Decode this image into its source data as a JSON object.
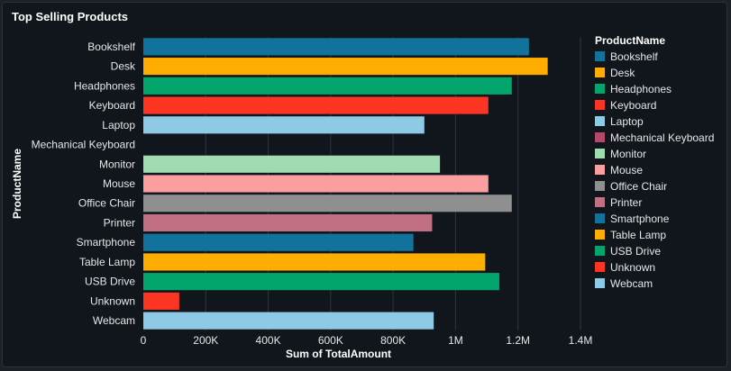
{
  "card": {
    "title": "Top Selling Products"
  },
  "chart_data": {
    "type": "bar",
    "orientation": "horizontal",
    "title": "Top Selling Products",
    "xlabel": "Sum of TotalAmount",
    "ylabel": "ProductName",
    "xlim": [
      0,
      1400000
    ],
    "x_ticks": [
      0,
      200000,
      400000,
      600000,
      800000,
      1000000,
      1200000,
      1400000
    ],
    "x_tick_labels": [
      "0",
      "200K",
      "400K",
      "600K",
      "800K",
      "1M",
      "1.2M",
      "1.4M"
    ],
    "grid": true,
    "legend": {
      "title": "ProductName",
      "position": "right"
    },
    "categories": [
      "Bookshelf",
      "Desk",
      "Headphones",
      "Keyboard",
      "Laptop",
      "Mechanical Keyboard",
      "Monitor",
      "Mouse",
      "Office Chair",
      "Printer",
      "Smartphone",
      "Table Lamp",
      "USB Drive",
      "Unknown",
      "Webcam"
    ],
    "values": [
      1235000,
      1295000,
      1180000,
      1105000,
      900000,
      0,
      950000,
      1105000,
      1180000,
      925000,
      865000,
      1095000,
      1140000,
      115000,
      930000
    ],
    "colors": [
      "#11729b",
      "#fdac00",
      "#02a66c",
      "#fc3422",
      "#8ecae6",
      "#b5486a",
      "#a1dbb1",
      "#fb9ea0",
      "#8f8f8f",
      "#c07082",
      "#11729b",
      "#fdac00",
      "#02a66c",
      "#fc3422",
      "#8ecae6"
    ]
  }
}
